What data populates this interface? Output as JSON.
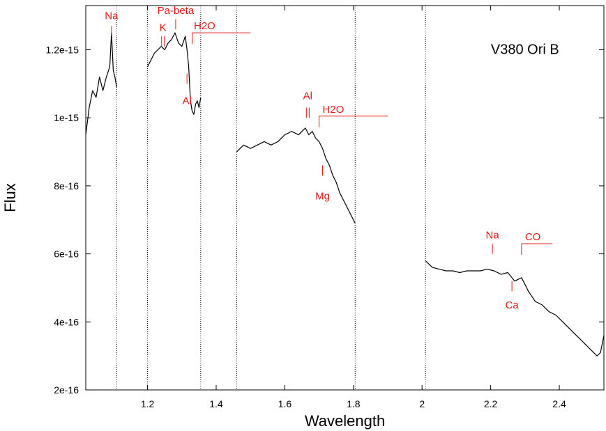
{
  "chart_data": {
    "type": "line",
    "title": "",
    "xlabel": "Wavelength",
    "ylabel": "Flux",
    "xlim": [
      1.02,
      2.53
    ],
    "ylim": [
      2e-16,
      1.33e-15
    ],
    "x_ticks": [
      1.2,
      1.4,
      1.6,
      1.8,
      2.0,
      2.2,
      2.4
    ],
    "x_tick_labels": [
      "1.2",
      "1.4",
      "1.6",
      "1.8",
      "2",
      "2.2",
      "2.4"
    ],
    "y_ticks": [
      2e-16,
      4e-16,
      6e-16,
      8e-16,
      1e-15,
      1.2e-15
    ],
    "y_tick_labels": [
      "2e-16",
      "4e-16",
      "6e-16",
      "8e-16",
      "1e-15",
      "1.2e-15"
    ],
    "grid": false,
    "legend_label": "V380 Ori B",
    "legend_position": "top-right",
    "line_color": "#000000",
    "annotation_color": "#e11b1b",
    "segment_boundaries": [
      1.11,
      1.2,
      1.355,
      1.46,
      1.805,
      2.01
    ],
    "series": [
      {
        "values_note_excluded": true,
        "segments": [
          {
            "x": [
              1.02,
              1.03,
              1.04,
              1.05,
              1.06,
              1.07,
              1.08,
              1.09,
              1.095,
              1.1,
              1.105,
              1.11
            ],
            "y": [
              9.5e-16,
              1.03e-15,
              1.08e-15,
              1.06e-15,
              1.12e-15,
              1.08e-15,
              1.12e-15,
              1.15e-15,
              1.25e-15,
              1.14e-15,
              1.12e-15,
              1.09e-15
            ]
          },
          {
            "x": [
              1.2,
              1.21,
              1.22,
              1.23,
              1.24,
              1.25,
              1.26,
              1.27,
              1.28,
              1.29,
              1.3,
              1.31,
              1.315,
              1.32,
              1.325,
              1.33,
              1.335,
              1.34,
              1.345,
              1.35,
              1.355
            ],
            "y": [
              1.15e-15,
              1.17e-15,
              1.19e-15,
              1.2e-15,
              1.21e-15,
              1.2e-15,
              1.22e-15,
              1.23e-15,
              1.25e-15,
              1.22e-15,
              1.21e-15,
              1.24e-15,
              1.2e-15,
              1.15e-15,
              1.05e-15,
              1.02e-15,
              1.01e-15,
              1.04e-15,
              1.05e-15,
              1.03e-15,
              1.06e-15
            ]
          },
          {
            "x": [
              1.46,
              1.48,
              1.5,
              1.52,
              1.54,
              1.56,
              1.58,
              1.6,
              1.62,
              1.64,
              1.66,
              1.67,
              1.68,
              1.69,
              1.7,
              1.71,
              1.72,
              1.73,
              1.74,
              1.75,
              1.76,
              1.77,
              1.78,
              1.79,
              1.8,
              1.805
            ],
            "y": [
              9e-16,
              9.2e-16,
              9.1e-16,
              9.2e-16,
              9.3e-16,
              9.2e-16,
              9.3e-16,
              9.5e-16,
              9.6e-16,
              9.5e-16,
              9.7e-16,
              9.5e-16,
              9.6e-16,
              9.4e-16,
              9.3e-16,
              9.1e-16,
              8.8e-16,
              8.6e-16,
              8.3e-16,
              8.1e-16,
              7.8e-16,
              7.6e-16,
              7.4e-16,
              7.2e-16,
              7e-16,
              6.9e-16
            ]
          },
          {
            "x": [
              2.01,
              2.03,
              2.05,
              2.07,
              2.09,
              2.11,
              2.13,
              2.15,
              2.17,
              2.19,
              2.21,
              2.23,
              2.25,
              2.27,
              2.29,
              2.31,
              2.33,
              2.35,
              2.37,
              2.39,
              2.41,
              2.43,
              2.45,
              2.47,
              2.49,
              2.51,
              2.52,
              2.53
            ],
            "y": [
              5.8e-16,
              5.6e-16,
              5.55e-16,
              5.5e-16,
              5.5e-16,
              5.45e-16,
              5.5e-16,
              5.5e-16,
              5.5e-16,
              5.55e-16,
              5.5e-16,
              5.4e-16,
              5.45e-16,
              5.2e-16,
              5.3e-16,
              4.9e-16,
              4.6e-16,
              4.5e-16,
              4.3e-16,
              4.2e-16,
              4e-16,
              3.8e-16,
              3.6e-16,
              3.4e-16,
              3.2e-16,
              3e-16,
              3.1e-16,
              3.6e-16
            ]
          }
        ]
      }
    ],
    "annotations": [
      {
        "label": "Na",
        "x": 1.095,
        "tick_y": [
          1.24e-15,
          1.27e-15
        ],
        "label_y": 1.29e-15,
        "side": "above"
      },
      {
        "label": "K",
        "x": 1.245,
        "tick_y": [
          1.21e-15,
          1.24e-15
        ],
        "label_y": 1.255e-15,
        "side": "above",
        "double": true
      },
      {
        "label": "Pa-beta",
        "x": 1.282,
        "tick_y": [
          1.26e-15,
          1.29e-15
        ],
        "label_y": 1.305e-15,
        "side": "above"
      },
      {
        "label": "H2O",
        "x": 1.33,
        "x_end": 1.5,
        "bracket_y": 1.25e-15,
        "label_x": 1.335,
        "label_y": 1.26e-15
      },
      {
        "label": "Al",
        "x": 1.315,
        "tick_y": [
          1.1e-15,
          1.13e-15
        ],
        "label_y": 1.04e-15,
        "side": "below"
      },
      {
        "label": "Al",
        "x": 1.667,
        "tick_y": [
          1e-15,
          1.03e-15
        ],
        "label_y": 1.055e-15,
        "side": "above",
        "double": true
      },
      {
        "label": "H2O",
        "x": 1.7,
        "x_end": 1.9,
        "bracket_y": 1.005e-15,
        "label_x": 1.71,
        "label_y": 1.015e-15
      },
      {
        "label": "Mg",
        "x": 1.71,
        "tick_y": [
          8.3e-16,
          8.6e-16
        ],
        "label_y": 7.6e-16,
        "side": "below"
      },
      {
        "label": "Na",
        "x": 2.205,
        "tick_y": [
          6e-16,
          6.3e-16
        ],
        "label_y": 6.45e-16,
        "side": "above"
      },
      {
        "label": "CO",
        "x": 2.29,
        "x_end": 2.38,
        "bracket_y": 6.3e-16,
        "label_x": 2.3,
        "label_y": 6.4e-16
      },
      {
        "label": "Ca",
        "x": 2.262,
        "tick_y": [
          4.9e-16,
          5.2e-16
        ],
        "label_y": 4.4e-16,
        "side": "below"
      }
    ]
  }
}
